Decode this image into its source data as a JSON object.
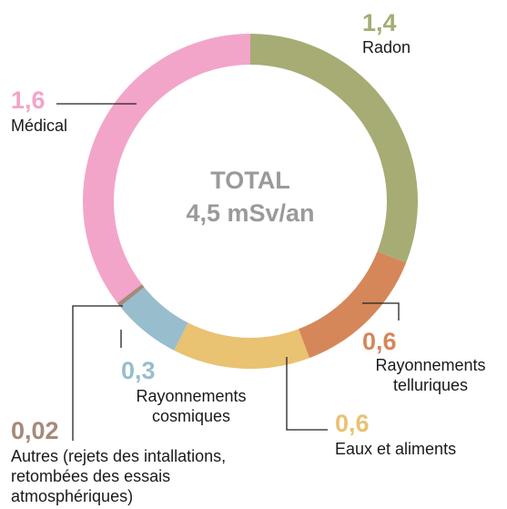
{
  "chart_data": {
    "type": "donut",
    "center_title": "TOTAL",
    "center_subtitle": "4,5 mSv/an",
    "categories": [
      "Radon",
      "Rayonnements telluriques",
      "Eaux et aliments",
      "Rayonnements cosmiques",
      "Autres (rejets des intallations, retombées des essais atmosphériques)",
      "Médical"
    ],
    "values": [
      1.4,
      0.6,
      0.6,
      0.3,
      0.02,
      1.6
    ],
    "value_labels": [
      "1,4",
      "0,6",
      "0,6",
      "0,3",
      "0,02",
      "1,6"
    ],
    "colors": [
      "#a6ac74",
      "#d5875a",
      "#e9c272",
      "#98bdcd",
      "#a48a7a",
      "#f2a5c9"
    ]
  }
}
